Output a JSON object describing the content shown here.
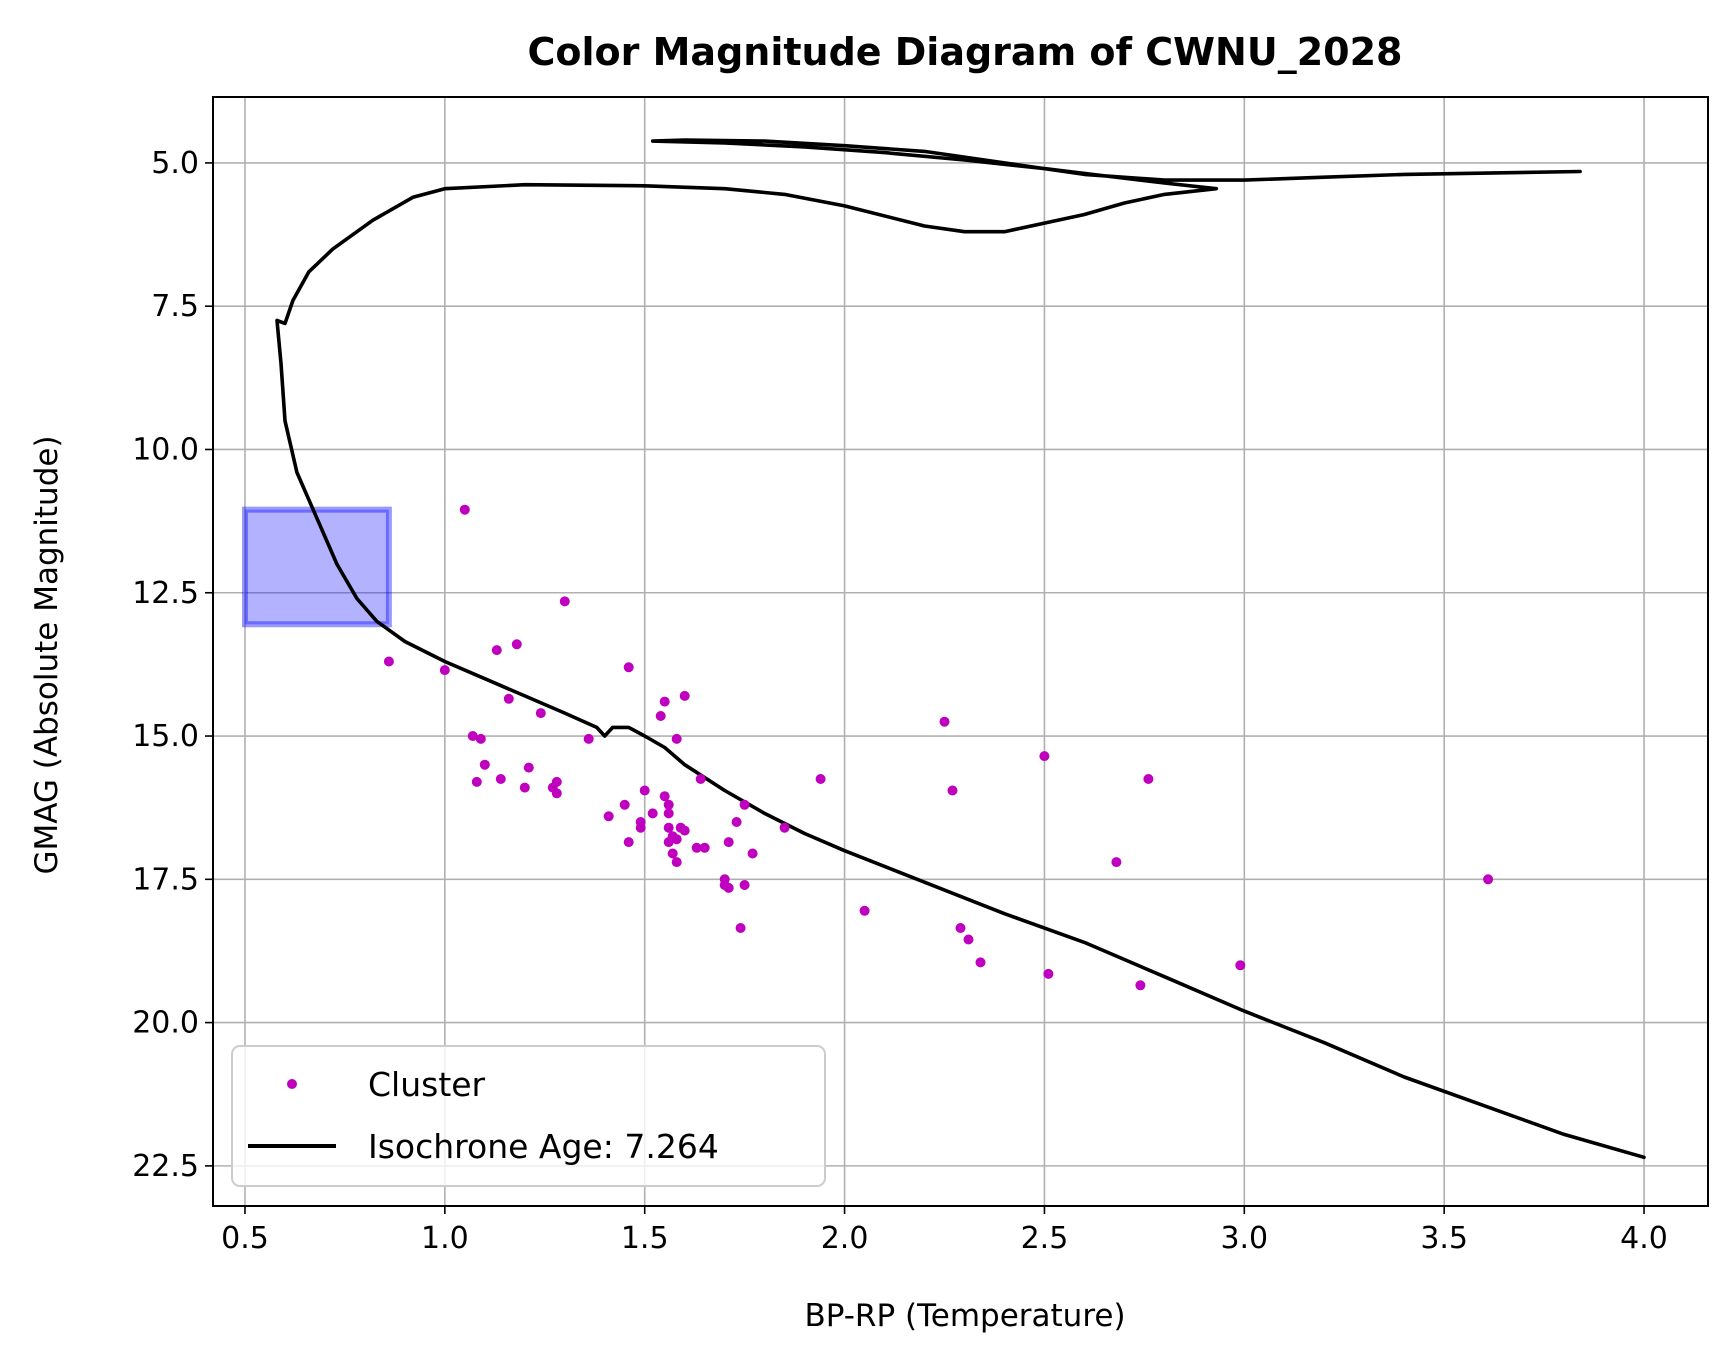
{
  "chart_data": {
    "type": "scatter",
    "title": "Color Magnitude Diagram of CWNU_2028",
    "xlabel": "BP-RP (Temperature)",
    "ylabel": "GMAG (Absolute Magnitude)",
    "xlim": [
      0.42,
      4.16
    ],
    "ylim": [
      23.2,
      3.85
    ],
    "y_inverted": true,
    "grid": true,
    "x_ticks": [
      "0.5",
      "1.0",
      "1.5",
      "2.0",
      "2.5",
      "3.0",
      "3.5",
      "4.0"
    ],
    "y_ticks": [
      "5.0",
      "7.5",
      "10.0",
      "12.5",
      "15.0",
      "17.5",
      "20.0",
      "22.5"
    ],
    "legend_position": "lower-left",
    "highlight_region": {
      "x": [
        0.5,
        0.86
      ],
      "y": [
        11.05,
        13.05
      ],
      "color": "#0000ff",
      "opacity": 0.3
    },
    "series": [
      {
        "name": "Cluster",
        "kind": "scatter",
        "color": "#bf00bf",
        "points": [
          [
            1.05,
            11.05
          ],
          [
            1.3,
            12.65
          ],
          [
            0.86,
            13.7
          ],
          [
            1.0,
            13.85
          ],
          [
            1.13,
            13.5
          ],
          [
            1.18,
            13.4
          ],
          [
            1.46,
            13.8
          ],
          [
            1.16,
            14.35
          ],
          [
            1.24,
            14.6
          ],
          [
            1.07,
            15.0
          ],
          [
            1.09,
            15.05
          ],
          [
            1.1,
            15.5
          ],
          [
            1.14,
            15.75
          ],
          [
            1.08,
            15.8
          ],
          [
            1.2,
            15.9
          ],
          [
            1.21,
            15.55
          ],
          [
            1.27,
            15.9
          ],
          [
            1.28,
            15.8
          ],
          [
            1.28,
            16.0
          ],
          [
            1.36,
            15.05
          ],
          [
            1.54,
            14.65
          ],
          [
            1.55,
            14.4
          ],
          [
            1.6,
            14.3
          ],
          [
            1.58,
            15.05
          ],
          [
            1.64,
            15.75
          ],
          [
            1.5,
            15.95
          ],
          [
            1.45,
            16.2
          ],
          [
            1.41,
            16.4
          ],
          [
            1.49,
            16.5
          ],
          [
            1.49,
            16.6
          ],
          [
            1.46,
            16.85
          ],
          [
            1.52,
            16.35
          ],
          [
            1.55,
            16.05
          ],
          [
            1.56,
            16.2
          ],
          [
            1.56,
            16.35
          ],
          [
            1.56,
            16.6
          ],
          [
            1.57,
            16.75
          ],
          [
            1.56,
            16.85
          ],
          [
            1.58,
            16.8
          ],
          [
            1.59,
            16.6
          ],
          [
            1.6,
            16.65
          ],
          [
            1.57,
            17.05
          ],
          [
            1.58,
            17.2
          ],
          [
            1.63,
            16.95
          ],
          [
            1.65,
            16.95
          ],
          [
            1.71,
            16.85
          ],
          [
            1.73,
            16.5
          ],
          [
            1.75,
            16.2
          ],
          [
            1.77,
            17.05
          ],
          [
            1.7,
            17.5
          ],
          [
            1.7,
            17.6
          ],
          [
            1.71,
            17.65
          ],
          [
            1.75,
            17.6
          ],
          [
            1.74,
            18.35
          ],
          [
            1.85,
            16.6
          ],
          [
            1.94,
            15.75
          ],
          [
            2.05,
            18.05
          ],
          [
            2.25,
            14.75
          ],
          [
            2.27,
            15.95
          ],
          [
            2.29,
            18.35
          ],
          [
            2.31,
            18.55
          ],
          [
            2.34,
            18.95
          ],
          [
            2.5,
            15.35
          ],
          [
            2.51,
            19.15
          ],
          [
            2.68,
            17.2
          ],
          [
            2.74,
            19.35
          ],
          [
            2.76,
            15.75
          ],
          [
            2.99,
            19.0
          ],
          [
            3.61,
            17.5
          ]
        ]
      },
      {
        "name": "Isochrone Age: 7.264",
        "kind": "line",
        "color": "#000000",
        "points": [
          [
            3.84,
            5.15
          ],
          [
            3.4,
            5.2
          ],
          [
            3.2,
            5.25
          ],
          [
            3.0,
            5.3
          ],
          [
            2.8,
            5.3
          ],
          [
            2.6,
            5.2
          ],
          [
            2.4,
            5.0
          ],
          [
            2.2,
            4.8
          ],
          [
            2.0,
            4.7
          ],
          [
            1.8,
            4.62
          ],
          [
            1.6,
            4.6
          ],
          [
            1.52,
            4.62
          ],
          [
            1.7,
            4.65
          ],
          [
            1.9,
            4.72
          ],
          [
            2.1,
            4.82
          ],
          [
            2.3,
            4.95
          ],
          [
            2.5,
            5.1
          ],
          [
            2.62,
            5.2
          ],
          [
            2.8,
            5.35
          ],
          [
            2.93,
            5.45
          ],
          [
            2.8,
            5.55
          ],
          [
            2.7,
            5.7
          ],
          [
            2.6,
            5.9
          ],
          [
            2.5,
            6.05
          ],
          [
            2.4,
            6.2
          ],
          [
            2.3,
            6.2
          ],
          [
            2.2,
            6.1
          ],
          [
            2.0,
            5.75
          ],
          [
            1.85,
            5.55
          ],
          [
            1.7,
            5.45
          ],
          [
            1.5,
            5.4
          ],
          [
            1.2,
            5.38
          ],
          [
            1.0,
            5.45
          ],
          [
            0.92,
            5.6
          ],
          [
            0.82,
            6.0
          ],
          [
            0.72,
            6.5
          ],
          [
            0.66,
            6.9
          ],
          [
            0.62,
            7.4
          ],
          [
            0.6,
            7.8
          ],
          [
            0.58,
            7.75
          ],
          [
            0.59,
            8.5
          ],
          [
            0.6,
            9.5
          ],
          [
            0.63,
            10.4
          ],
          [
            0.68,
            11.2
          ],
          [
            0.73,
            12.0
          ],
          [
            0.78,
            12.6
          ],
          [
            0.83,
            13.0
          ],
          [
            0.9,
            13.35
          ],
          [
            1.0,
            13.7
          ],
          [
            1.1,
            14.0
          ],
          [
            1.2,
            14.3
          ],
          [
            1.3,
            14.6
          ],
          [
            1.38,
            14.85
          ],
          [
            1.4,
            15.0
          ],
          [
            1.42,
            14.85
          ],
          [
            1.46,
            14.85
          ],
          [
            1.5,
            15.0
          ],
          [
            1.55,
            15.2
          ],
          [
            1.6,
            15.5
          ],
          [
            1.7,
            15.95
          ],
          [
            1.8,
            16.35
          ],
          [
            1.9,
            16.7
          ],
          [
            2.0,
            17.0
          ],
          [
            2.2,
            17.55
          ],
          [
            2.4,
            18.1
          ],
          [
            2.6,
            18.6
          ],
          [
            2.8,
            19.2
          ],
          [
            3.0,
            19.8
          ],
          [
            3.2,
            20.35
          ],
          [
            3.4,
            20.95
          ],
          [
            3.6,
            21.45
          ],
          [
            3.8,
            21.95
          ],
          [
            4.0,
            22.35
          ]
        ]
      }
    ]
  }
}
